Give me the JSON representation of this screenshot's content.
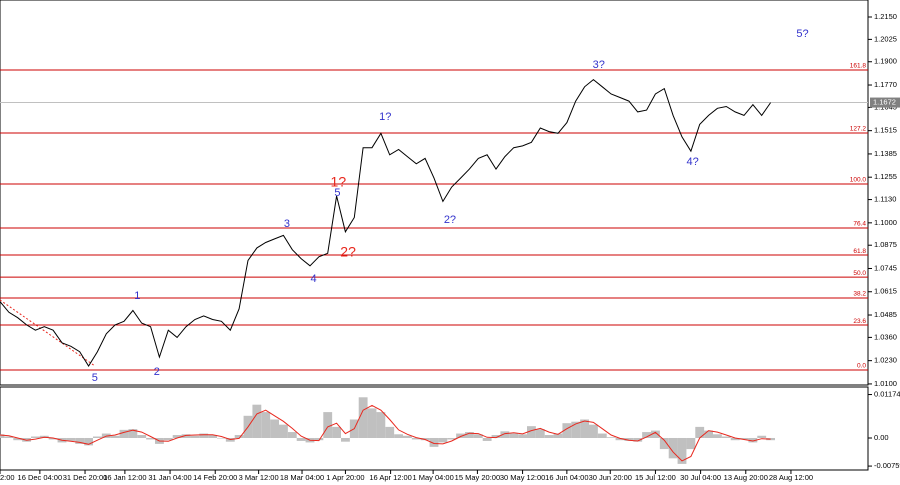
{
  "chart_data": [
    {
      "type": "line",
      "color": "#000000",
      "values": [
        1.056,
        1.05,
        1.047,
        1.043,
        1.04,
        1.042,
        1.04,
        1.033,
        1.031,
        1.028,
        1.02,
        1.028,
        1.038,
        1.043,
        1.045,
        1.051,
        1.044,
        1.042,
        1.025,
        1.04,
        1.036,
        1.042,
        1.046,
        1.048,
        1.046,
        1.045,
        1.04,
        1.052,
        1.079,
        1.086,
        1.089,
        1.091,
        1.093,
        1.085,
        1.08,
        1.076,
        1.081,
        1.083,
        1.115,
        1.095,
        1.103,
        1.142,
        1.142,
        1.15,
        1.138,
        1.141,
        1.137,
        1.133,
        1.136,
        1.125,
        1.112,
        1.12,
        1.125,
        1.13,
        1.136,
        1.138,
        1.13,
        1.137,
        1.142,
        1.143,
        1.145,
        1.153,
        1.151,
        1.15,
        1.156,
        1.168,
        1.176,
        1.18,
        1.176,
        1.172,
        1.17,
        1.168,
        1.162,
        1.163,
        1.172,
        1.175,
        1.16,
        1.148,
        1.14,
        1.155,
        1.16,
        1.164,
        1.165,
        1.162,
        1.16,
        1.166,
        1.16,
        1.1672
      ],
      "xlim": [
        0,
        98
      ],
      "xticks": [
        {
          "value": 0,
          "label": "2:00"
        },
        {
          "value": 4.5,
          "label": "16 Dec 04:00"
        },
        {
          "value": 9.6,
          "label": "31 Dec 20:00"
        },
        {
          "value": 14.1,
          "label": "16 Jan 12:00"
        },
        {
          "value": 19.2,
          "label": "31 Jan 04:00"
        },
        {
          "value": 24.3,
          "label": "14 Feb 20:00"
        },
        {
          "value": 29.2,
          "label": "3 Mar 12:00"
        },
        {
          "value": 34.1,
          "label": "18 Mar 04:00"
        },
        {
          "value": 39,
          "label": "1 Apr 20:00"
        },
        {
          "value": 44.1,
          "label": "16 Apr 12:00"
        },
        {
          "value": 48.9,
          "label": "1 May 04:00"
        },
        {
          "value": 53.9,
          "label": "15 May 20:00"
        },
        {
          "value": 59,
          "label": "30 May 12:00"
        },
        {
          "value": 64,
          "label": "16 Jun 04:00"
        },
        {
          "value": 68.9,
          "label": "30 Jun 20:00"
        },
        {
          "value": 74,
          "label": "15 Jul 12:00"
        },
        {
          "value": 79.1,
          "label": "30 Jul 04:00"
        },
        {
          "value": 84.2,
          "label": "13 Aug 20:00"
        },
        {
          "value": 89.3,
          "label": "28 Aug 12:00"
        }
      ],
      "ylim": [
        1.0094,
        1.2245
      ],
      "yticks": [
        {
          "value": 1.215,
          "label": "1.2150"
        },
        1.2025,
        {
          "value": 1.19,
          "label": "1.1900"
        },
        {
          "value": 1.177,
          "label": "1.1770"
        },
        1.1645,
        1.1515,
        1.1385,
        1.1255,
        {
          "value": 1.113,
          "label": "1.1130"
        },
        {
          "value": 1.1,
          "label": "1.1000"
        },
        1.0875,
        1.0745,
        1.0615,
        1.0485,
        {
          "value": 1.036,
          "label": "1.0360"
        },
        {
          "value": 1.023,
          "label": "1.0230"
        },
        {
          "value": 1.01,
          "label": "1.0100"
        }
      ],
      "current_price": 1.1672,
      "fib_color": "#cc0000",
      "fib_levels": [
        {
          "price": 1.1854,
          "label": "161.8"
        },
        {
          "price": 1.1502,
          "label": "127.2"
        },
        {
          "price": 1.1217,
          "label": "100.0"
        },
        {
          "price": 1.0971,
          "label": "76.4"
        },
        {
          "price": 1.082,
          "label": "61.8"
        },
        {
          "price": 1.0697,
          "label": "50.0"
        },
        {
          "price": 1.058,
          "label": "38.2"
        },
        {
          "price": 1.0429,
          "label": "23.6"
        },
        {
          "price": 1.0178,
          "label": "0.0"
        }
      ],
      "annotations": [
        {
          "text": "5",
          "x": 10.7,
          "y": 1.0133,
          "color": "#3333cc"
        },
        {
          "text": "1",
          "x": 15.5,
          "y": 1.0591,
          "color": "#3333cc"
        },
        {
          "text": "2",
          "x": 17.7,
          "y": 1.0167,
          "color": "#3333cc"
        },
        {
          "text": "3",
          "x": 32.4,
          "y": 1.0994,
          "color": "#3333cc"
        },
        {
          "text": "4",
          "x": 35.4,
          "y": 1.0686,
          "color": "#3333cc"
        },
        {
          "text": "5",
          "x": 38.1,
          "y": 1.1167,
          "color": "#3333cc"
        },
        {
          "text": "1?",
          "x": 38.2,
          "y": 1.1223,
          "color": "#e8281e"
        },
        {
          "text": "2?",
          "x": 39.3,
          "y": 1.0832,
          "color": "#e8281e"
        },
        {
          "text": "1?",
          "x": 43.5,
          "y": 1.1591,
          "color": "#3333cc"
        },
        {
          "text": "2?",
          "x": 50.8,
          "y": 1.1016,
          "color": "#3333cc"
        },
        {
          "text": "3?",
          "x": 67.6,
          "y": 1.1882,
          "color": "#3333cc"
        },
        {
          "text": "4?",
          "x": 78.2,
          "y": 1.134,
          "color": "#3333cc"
        },
        {
          "text": "5?",
          "x": 90.6,
          "y": 1.2055,
          "color": "#3333cc"
        }
      ]
    },
    {
      "type": "bar",
      "color": "#c0c0c0",
      "values": [
        0.001,
        0.0004,
        -0.0006,
        -0.001,
        0.0004,
        0.0006,
        -0.0004,
        -0.0012,
        -0.0008,
        -0.0016,
        -0.002,
        0.0004,
        0.0012,
        0.0006,
        0.0022,
        0.0024,
        0.0008,
        -0.0004,
        -0.0016,
        -0.0006,
        0.0008,
        0.001,
        0.0006,
        0.0012,
        0.0008,
        0,
        -0.001,
        0.0008,
        0.006,
        0.009,
        0.007,
        0.005,
        0.0036,
        0.0016,
        -0.0008,
        -0.0012,
        -0.0006,
        0.007,
        0.003,
        -0.001,
        0.005,
        0.011,
        0.008,
        0.007,
        0.003,
        0.001,
        0.0006,
        -0.0004,
        -0.0006,
        -0.0024,
        -0.0012,
        -0.0004,
        0.0012,
        0.0016,
        0.001,
        -0.0008,
        0.0008,
        0.0018,
        0.0012,
        0.001,
        0.0032,
        0.0024,
        0.0008,
        0.0012,
        0.004,
        0.0044,
        0.005,
        0.0036,
        0.0012,
        0.0002,
        -0.0006,
        -0.0008,
        -0.001,
        0.0016,
        0.002,
        -0.003,
        -0.0055,
        -0.007,
        -0.003,
        0.003,
        0.002,
        0.001,
        0.0004,
        -0.0006,
        -0.0004,
        -0.0012,
        0.0006,
        -0.0006
      ],
      "signal": {
        "color": "#e8281e",
        "values": [
          0.0008,
          0.0006,
          0,
          -0.0006,
          -0.0003,
          0.0002,
          0,
          -0.0006,
          -0.0009,
          -0.0012,
          -0.0017,
          -0.0006,
          0.0005,
          0.0008,
          0.0015,
          0.0021,
          0.0016,
          0.0004,
          -0.0008,
          -0.0009,
          0,
          0.0007,
          0.0008,
          0.0009,
          0.0009,
          0.0004,
          -0.0004,
          -0.0001,
          0.003,
          0.0065,
          0.0075,
          0.006,
          0.0045,
          0.0026,
          0.0005,
          -0.0006,
          -0.0007,
          0.003,
          0.004,
          0.0012,
          0.0025,
          0.0075,
          0.0088,
          0.0075,
          0.005,
          0.0022,
          0.001,
          0.0001,
          -0.0004,
          -0.0015,
          -0.0016,
          -0.0008,
          0.0004,
          0.0013,
          0.0012,
          0.0002,
          0.0001,
          0.0012,
          0.0014,
          0.0011,
          0.002,
          0.0026,
          0.0016,
          0.001,
          0.0025,
          0.0038,
          0.0046,
          0.0042,
          0.0025,
          0.0008,
          -0.0001,
          -0.0006,
          -0.0008,
          0.0003,
          0.0015,
          -0.0006,
          -0.0038,
          -0.0062,
          -0.005,
          0,
          0.002,
          0.0016,
          0.0008,
          0,
          -0.0004,
          -0.0008,
          -0.0002,
          -0.0003
        ]
      },
      "ylim": [
        -0.00865,
        0.01378
      ],
      "yticks": [
        0.01174,
        {
          "value": 0,
          "label": "0.00"
        },
        -0.00759
      ]
    }
  ]
}
